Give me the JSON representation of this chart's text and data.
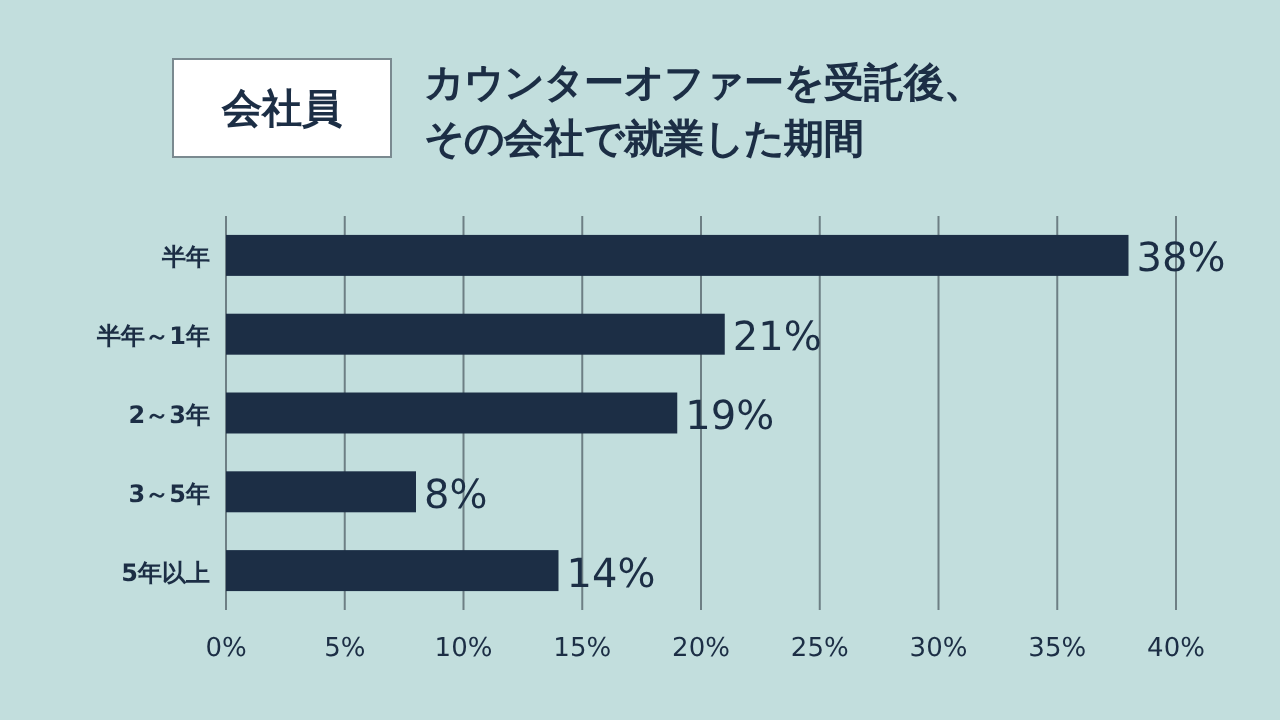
{
  "chart_data": {
    "type": "bar",
    "orientation": "horizontal",
    "subtitle": "会社員",
    "title": "カウンターオファーを受託後、その会社で就業した期間",
    "categories": [
      "半年",
      "半年～1年",
      "2～3年",
      "3～5年",
      "5年以上"
    ],
    "values": [
      38,
      21,
      19,
      8,
      14
    ],
    "value_labels": [
      "38%",
      "21%",
      "19%",
      "8%",
      "14%"
    ],
    "color": "#1c2e45",
    "xlim": [
      0,
      40
    ],
    "xticks": [
      {
        "value": 0,
        "label": "0%"
      },
      {
        "value": 5,
        "label": "5%"
      },
      {
        "value": 10,
        "label": "10%"
      },
      {
        "value": 15,
        "label": "15%"
      },
      {
        "value": 20,
        "label": "20%"
      },
      {
        "value": 25,
        "label": "25%"
      },
      {
        "value": 30,
        "label": "30%"
      },
      {
        "value": 35,
        "label": "35%"
      },
      {
        "value": 40,
        "label": "40%"
      }
    ],
    "grid": "x"
  }
}
